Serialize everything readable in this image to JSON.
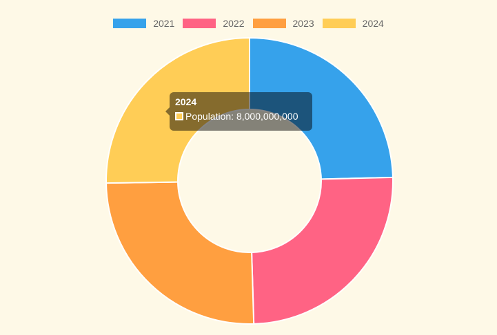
{
  "chart_data": {
    "type": "pie",
    "variant": "doughnut",
    "categories": [
      "2021",
      "2022",
      "2023",
      "2024"
    ],
    "series": [
      {
        "name": "Population",
        "values": [
          7800000000,
          7900000000,
          8000000000,
          8000000000
        ]
      }
    ],
    "colors": [
      "#36a2eb",
      "#ff6384",
      "#ff9f40",
      "#ffcd56"
    ],
    "legend": "top",
    "title": ""
  },
  "tooltip": {
    "title": "2024",
    "label": "Population: 8,000,000,000",
    "color": "#ffcd56"
  }
}
